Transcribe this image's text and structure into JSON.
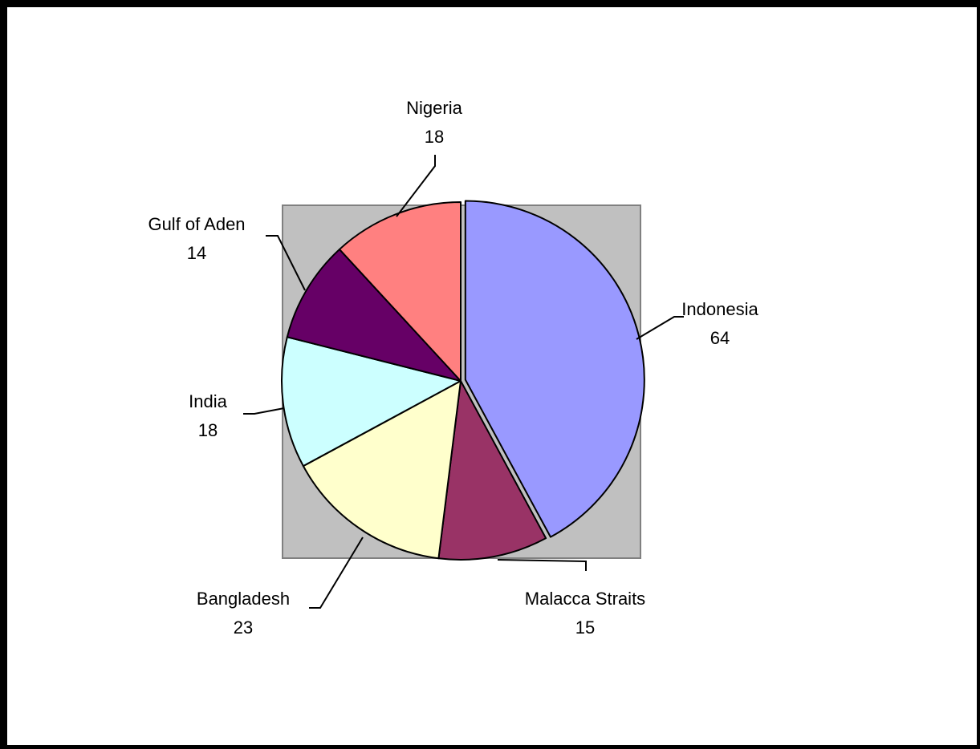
{
  "chart_data": {
    "type": "pie",
    "title": "",
    "legend": "none",
    "plot_background": "#c0c0c0",
    "slices": [
      {
        "label": "Indonesia",
        "value": 64,
        "color": "#9999ff",
        "exploded": true
      },
      {
        "label": "Malacca Straits",
        "value": 15,
        "color": "#993366",
        "exploded": false
      },
      {
        "label": "Bangladesh",
        "value": 23,
        "color": "#ffffcc",
        "exploded": false
      },
      {
        "label": "India",
        "value": 18,
        "color": "#ccffff",
        "exploded": false
      },
      {
        "label": "Gulf of Aden",
        "value": 14,
        "color": "#660066",
        "exploded": false
      },
      {
        "label": "Nigeria",
        "value": 18,
        "color": "#ff8080",
        "exploded": false
      }
    ]
  }
}
